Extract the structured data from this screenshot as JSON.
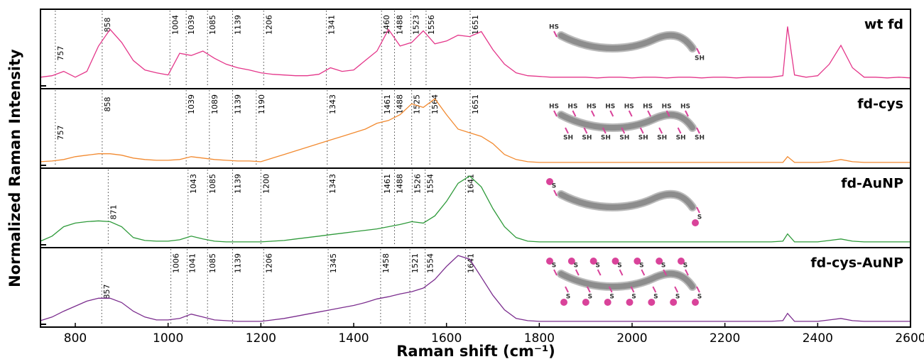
{
  "chart_data": {
    "type": "line",
    "x_label": "Raman shift (cm⁻¹)",
    "y_label": "Normalized Raman Intensity",
    "xlim": [
      725,
      2600
    ],
    "ylim": [
      0,
      100
    ],
    "xticks": [
      800,
      1000,
      1200,
      1400,
      1600,
      1800,
      2000,
      2200,
      2400,
      2600
    ],
    "x": [
      725,
      750,
      775,
      800,
      825,
      850,
      875,
      900,
      925,
      950,
      975,
      1000,
      1025,
      1050,
      1075,
      1100,
      1125,
      1150,
      1175,
      1200,
      1225,
      1250,
      1275,
      1300,
      1325,
      1350,
      1375,
      1400,
      1425,
      1450,
      1475,
      1500,
      1525,
      1550,
      1575,
      1600,
      1625,
      1650,
      1675,
      1700,
      1725,
      1750,
      1775,
      1800,
      1825,
      1850,
      1875,
      1900,
      1925,
      1950,
      1975,
      2000,
      2025,
      2050,
      2075,
      2100,
      2125,
      2150,
      2175,
      2200,
      2225,
      2250,
      2275,
      2300,
      2325,
      2335,
      2350,
      2375,
      2400,
      2425,
      2450,
      2475,
      2500,
      2525,
      2550,
      2575,
      2600
    ],
    "series": [
      {
        "name": "wt fd",
        "color": "#e4368a",
        "values": [
          12,
          14,
          20,
          12,
          20,
          55,
          78,
          60,
          35,
          22,
          18,
          15,
          45,
          42,
          48,
          38,
          30,
          25,
          22,
          18,
          16,
          15,
          14,
          14,
          16,
          25,
          20,
          22,
          35,
          48,
          78,
          55,
          60,
          76,
          58,
          62,
          70,
          68,
          75,
          50,
          30,
          18,
          14,
          13,
          12,
          12,
          12,
          12,
          11,
          12,
          12,
          11,
          12,
          12,
          11,
          12,
          12,
          11,
          12,
          12,
          11,
          12,
          12,
          12,
          14,
          82,
          15,
          12,
          14,
          30,
          56,
          25,
          12,
          12,
          11,
          12,
          11
        ],
        "peaks": [
          757,
          858,
          1004,
          1039,
          1085,
          1139,
          1206,
          1341,
          1460,
          1488,
          1523,
          1556,
          1651
        ],
        "thiol_labels": [
          "HS",
          "SH"
        ]
      },
      {
        "name": "fd-cys",
        "color": "#f28a30",
        "values": [
          5,
          6,
          8,
          12,
          14,
          16,
          16,
          14,
          10,
          8,
          7,
          7,
          8,
          12,
          10,
          8,
          7,
          6,
          6,
          5,
          10,
          15,
          20,
          25,
          30,
          35,
          40,
          45,
          50,
          58,
          62,
          70,
          85,
          80,
          92,
          70,
          50,
          45,
          40,
          30,
          15,
          8,
          5,
          4,
          4,
          4,
          4,
          4,
          4,
          4,
          4,
          4,
          4,
          4,
          4,
          4,
          4,
          4,
          4,
          4,
          4,
          4,
          4,
          4,
          4,
          12,
          4,
          4,
          4,
          5,
          8,
          5,
          4,
          4,
          4,
          4,
          4
        ],
        "peaks": [
          757,
          858,
          1039,
          1089,
          1139,
          1190,
          1343,
          1461,
          1488,
          1525,
          1564,
          1651
        ],
        "thiol_labels": [
          "HS",
          "HS",
          "HS",
          "HS",
          "HS",
          "HS",
          "HS",
          "HS",
          "SH",
          "SH",
          "SH",
          "SH",
          "SH",
          "SH",
          "SH",
          "SH"
        ]
      },
      {
        "name": "fd-AuNP",
        "color": "#2e9a3a",
        "values": [
          5,
          12,
          25,
          30,
          32,
          33,
          32,
          25,
          10,
          6,
          5,
          5,
          7,
          12,
          8,
          5,
          4,
          4,
          4,
          4,
          5,
          6,
          8,
          10,
          12,
          14,
          16,
          18,
          20,
          22,
          25,
          28,
          32,
          30,
          40,
          60,
          85,
          95,
          80,
          50,
          25,
          10,
          5,
          4,
          4,
          4,
          4,
          4,
          4,
          4,
          4,
          4,
          4,
          4,
          4,
          4,
          4,
          4,
          4,
          4,
          4,
          4,
          4,
          4,
          5,
          15,
          4,
          4,
          4,
          6,
          8,
          5,
          4,
          4,
          4,
          4,
          4
        ],
        "peaks": [
          871,
          1043,
          1085,
          1139,
          1200,
          1343,
          1461,
          1488,
          1526,
          1554,
          1641
        ],
        "thiol_labels": [
          "S",
          "S"
        ]
      },
      {
        "name": "fd-cys-AuNP",
        "color": "#7b2d8e",
        "values": [
          5,
          10,
          18,
          25,
          32,
          36,
          36,
          30,
          18,
          10,
          6,
          6,
          8,
          14,
          10,
          6,
          5,
          4,
          4,
          4,
          6,
          8,
          11,
          14,
          17,
          20,
          23,
          26,
          30,
          35,
          38,
          42,
          45,
          50,
          62,
          80,
          95,
          90,
          65,
          40,
          20,
          8,
          5,
          4,
          4,
          4,
          4,
          4,
          4,
          4,
          4,
          4,
          4,
          4,
          4,
          4,
          4,
          4,
          4,
          4,
          4,
          4,
          4,
          4,
          5,
          15,
          4,
          4,
          4,
          6,
          8,
          5,
          4,
          4,
          4,
          4,
          4
        ],
        "peaks": [
          857,
          1006,
          1041,
          1085,
          1139,
          1206,
          1345,
          1458,
          1521,
          1554,
          1641
        ],
        "thiol_labels": [
          "S",
          "S",
          "S",
          "S",
          "S",
          "S",
          "S",
          "S",
          "S",
          "S",
          "S",
          "S",
          "S",
          "S"
        ]
      }
    ]
  }
}
